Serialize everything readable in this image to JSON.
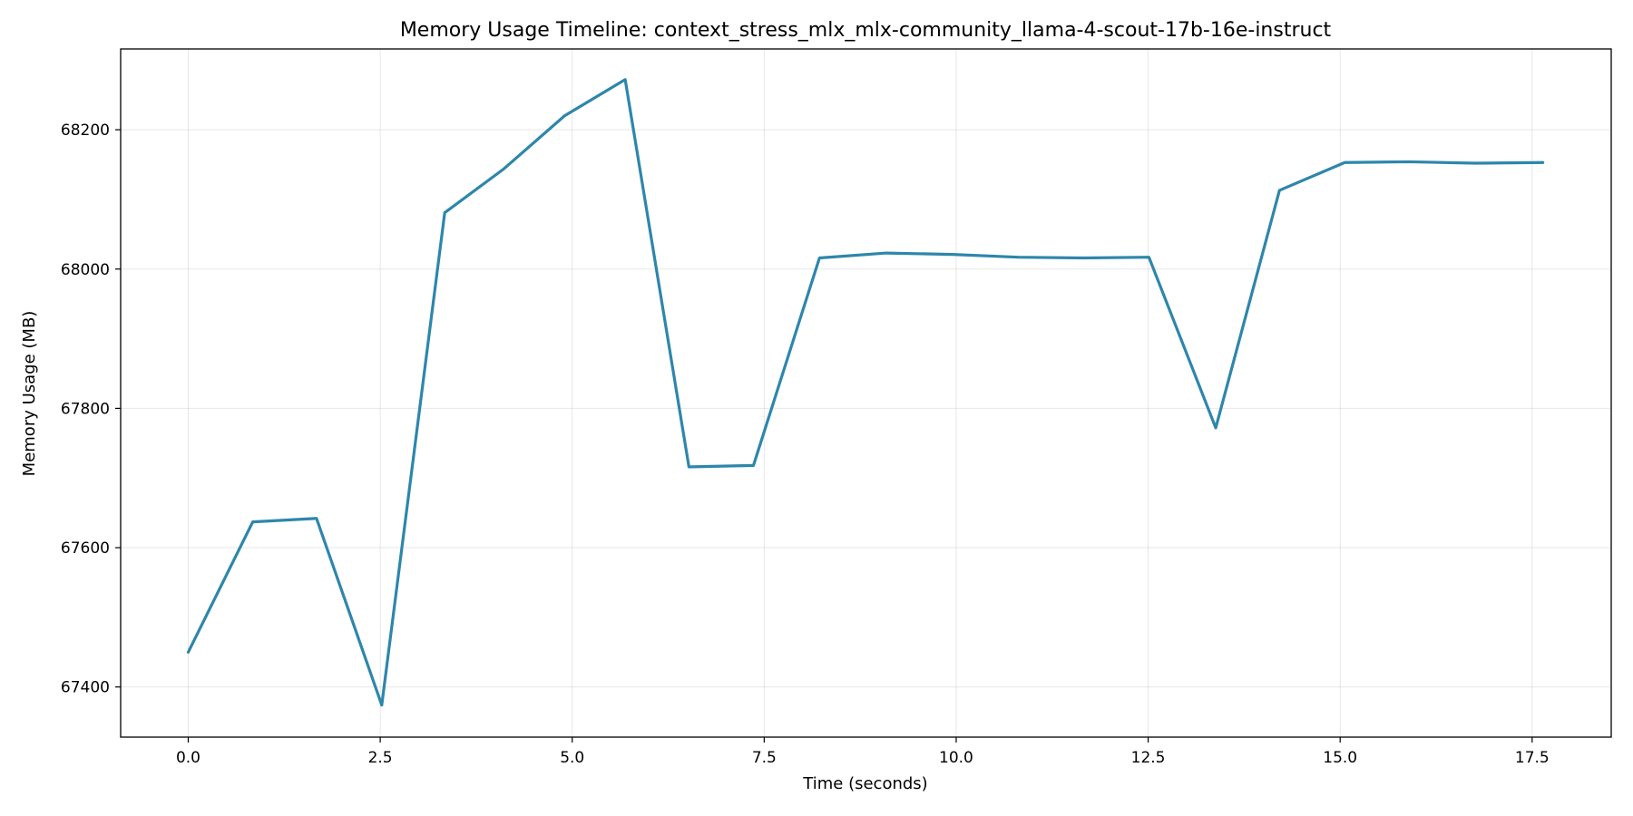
{
  "colors": {
    "line": "#2e86ab",
    "background": "#ffffff",
    "grid": "#b0b0b0"
  },
  "chart_data": {
    "type": "line",
    "title": "Memory Usage Timeline: context_stress_mlx_mlx-community_llama-4-scout-17b-16e-instruct",
    "xlabel": "Time (seconds)",
    "ylabel": "Memory Usage (MB)",
    "xlim": [
      -0.88,
      18.53
    ],
    "ylim": [
      67328,
      68316
    ],
    "grid": true,
    "x_ticks": [
      0.0,
      2.5,
      5.0,
      7.5,
      10.0,
      12.5,
      15.0,
      17.5
    ],
    "x_tick_labels": [
      "0.0",
      "2.5",
      "5.0",
      "7.5",
      "10.0",
      "12.5",
      "15.0",
      "17.5"
    ],
    "y_ticks": [
      67400,
      67600,
      67800,
      68000,
      68200
    ],
    "y_tick_labels": [
      "67400",
      "67600",
      "67800",
      "68000",
      "68200"
    ],
    "series": [
      {
        "x": [
          0.0,
          0.84,
          1.67,
          2.52,
          3.34,
          4.1,
          4.9,
          5.69,
          6.52,
          7.36,
          8.22,
          9.09,
          9.95,
          10.81,
          11.66,
          12.51,
          13.38,
          14.21,
          15.06,
          15.9,
          16.76,
          17.64
        ],
        "values": [
          67450,
          67637,
          67642,
          67374,
          68081,
          68143,
          68220,
          68272,
          67716,
          67718,
          68016,
          68023,
          68021,
          68017,
          68016,
          68017,
          67772,
          68113,
          68153,
          68154,
          68152,
          68153
        ]
      }
    ]
  }
}
